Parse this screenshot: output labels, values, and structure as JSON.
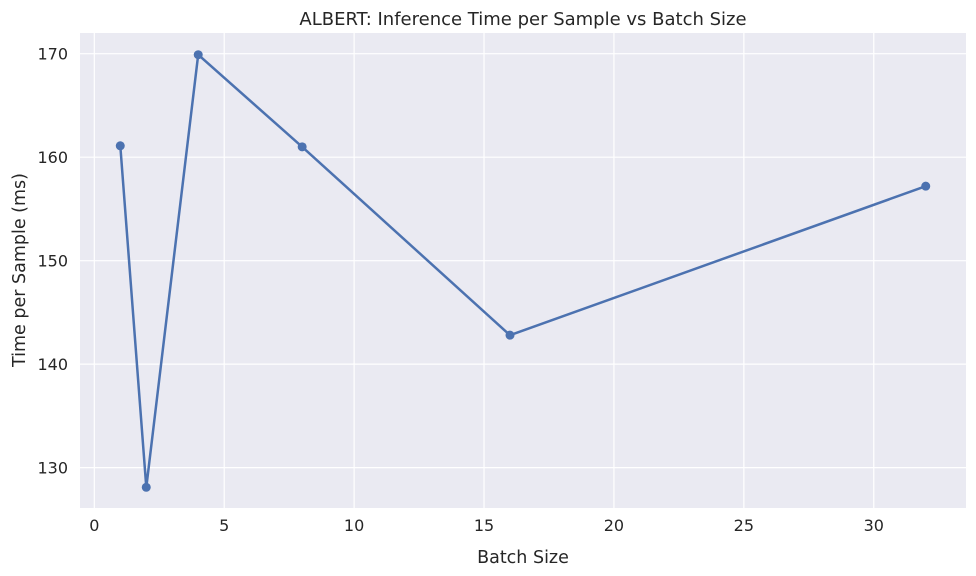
{
  "chart_data": {
    "type": "line",
    "title": "ALBERT: Inference Time per Sample vs Batch Size",
    "xlabel": "Batch Size",
    "ylabel": "Time per Sample (ms)",
    "xlim": [
      -0.55,
      33.55
    ],
    "ylim": [
      126.1,
      172.0
    ],
    "xticks": [
      0,
      5,
      10,
      15,
      20,
      25,
      30
    ],
    "yticks": [
      130,
      140,
      150,
      160,
      170
    ],
    "grid": true,
    "series": [
      {
        "x": [
          1,
          2,
          4,
          8,
          16,
          32
        ],
        "values": [
          161.1,
          128.1,
          169.9,
          161.0,
          142.8,
          157.2
        ]
      }
    ],
    "colors": {
      "line": "#4c72b0",
      "plot_background": "#eaeaf2",
      "grid": "#ffffff"
    }
  }
}
